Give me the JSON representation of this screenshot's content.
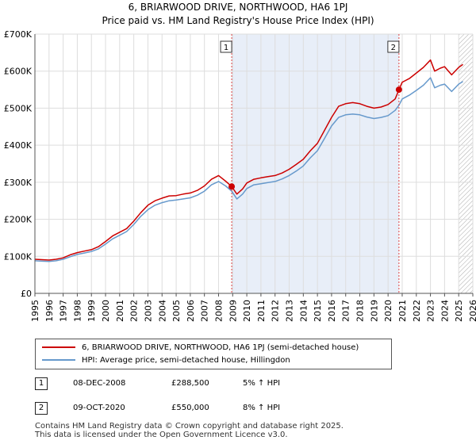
{
  "title_line1": "6, BRIARWOOD DRIVE, NORTHWOOD, HA6 1PJ",
  "title_line2": "Price paid vs. HM Land Registry's House Price Index (HPI)",
  "chart_data": {
    "type": "line",
    "ylim": [
      0,
      700000
    ],
    "xlim": [
      1995,
      2026
    ],
    "y_ticks": [
      {
        "value": 0,
        "label": "£0"
      },
      {
        "value": 100000,
        "label": "£100K"
      },
      {
        "value": 200000,
        "label": "£200K"
      },
      {
        "value": 300000,
        "label": "£300K"
      },
      {
        "value": 400000,
        "label": "£400K"
      },
      {
        "value": 500000,
        "label": "£500K"
      },
      {
        "value": 600000,
        "label": "£600K"
      },
      {
        "value": 700000,
        "label": "£700K"
      }
    ],
    "x_ticks": [
      "1995",
      "1996",
      "1997",
      "1998",
      "1999",
      "2000",
      "2001",
      "2002",
      "2003",
      "2004",
      "2005",
      "2006",
      "2007",
      "2008",
      "2009",
      "2010",
      "2011",
      "2012",
      "2013",
      "2014",
      "2015",
      "2016",
      "2017",
      "2018",
      "2019",
      "2020",
      "2021",
      "2022",
      "2023",
      "2024",
      "2025",
      "2026"
    ],
    "shaded_range": [
      2008.93,
      2020.77
    ],
    "future_hatch_from": 2025.0,
    "series": [
      {
        "name": "6, BRIARWOOD DRIVE, NORTHWOOD, HA6 1PJ (semi-detached house)",
        "color": "#cc0000",
        "points": [
          [
            1995.0,
            92000
          ],
          [
            1995.5,
            91000
          ],
          [
            1996.0,
            90000
          ],
          [
            1996.5,
            92000
          ],
          [
            1997.0,
            96000
          ],
          [
            1997.5,
            104000
          ],
          [
            1998.0,
            110000
          ],
          [
            1998.5,
            114000
          ],
          [
            1999.0,
            118000
          ],
          [
            1999.5,
            126000
          ],
          [
            2000.0,
            140000
          ],
          [
            2000.5,
            155000
          ],
          [
            2001.0,
            165000
          ],
          [
            2001.5,
            175000
          ],
          [
            2002.0,
            195000
          ],
          [
            2002.5,
            218000
          ],
          [
            2003.0,
            238000
          ],
          [
            2003.5,
            250000
          ],
          [
            2004.0,
            257000
          ],
          [
            2004.5,
            263000
          ],
          [
            2005.0,
            264000
          ],
          [
            2005.5,
            268000
          ],
          [
            2006.0,
            271000
          ],
          [
            2006.5,
            278000
          ],
          [
            2007.0,
            290000
          ],
          [
            2007.5,
            308000
          ],
          [
            2008.0,
            318000
          ],
          [
            2008.5,
            303000
          ],
          [
            2008.93,
            288500
          ],
          [
            2009.3,
            268000
          ],
          [
            2009.7,
            282000
          ],
          [
            2010.0,
            298000
          ],
          [
            2010.5,
            308000
          ],
          [
            2011.0,
            312000
          ],
          [
            2011.5,
            315000
          ],
          [
            2012.0,
            318000
          ],
          [
            2012.5,
            325000
          ],
          [
            2013.0,
            335000
          ],
          [
            2013.5,
            348000
          ],
          [
            2014.0,
            362000
          ],
          [
            2014.5,
            385000
          ],
          [
            2015.0,
            405000
          ],
          [
            2015.5,
            440000
          ],
          [
            2016.0,
            475000
          ],
          [
            2016.5,
            505000
          ],
          [
            2017.0,
            512000
          ],
          [
            2017.5,
            515000
          ],
          [
            2018.0,
            512000
          ],
          [
            2018.5,
            505000
          ],
          [
            2019.0,
            500000
          ],
          [
            2019.5,
            503000
          ],
          [
            2020.0,
            510000
          ],
          [
            2020.5,
            525000
          ],
          [
            2020.77,
            550000
          ],
          [
            2021.0,
            570000
          ],
          [
            2021.5,
            580000
          ],
          [
            2022.0,
            595000
          ],
          [
            2022.5,
            610000
          ],
          [
            2023.0,
            630000
          ],
          [
            2023.3,
            600000
          ],
          [
            2023.7,
            608000
          ],
          [
            2024.0,
            612000
          ],
          [
            2024.5,
            590000
          ],
          [
            2025.0,
            610000
          ],
          [
            2025.3,
            618000
          ]
        ]
      },
      {
        "name": "HPI: Average price, semi-detached house, Hillingdon",
        "color": "#6699cc",
        "points": [
          [
            1995.0,
            88000
          ],
          [
            1995.5,
            87000
          ],
          [
            1996.0,
            86000
          ],
          [
            1996.5,
            88000
          ],
          [
            1997.0,
            92000
          ],
          [
            1997.5,
            99000
          ],
          [
            1998.0,
            105000
          ],
          [
            1998.5,
            109000
          ],
          [
            1999.0,
            113000
          ],
          [
            1999.5,
            120000
          ],
          [
            2000.0,
            133000
          ],
          [
            2000.5,
            147000
          ],
          [
            2001.0,
            157000
          ],
          [
            2001.5,
            167000
          ],
          [
            2002.0,
            186000
          ],
          [
            2002.5,
            208000
          ],
          [
            2003.0,
            226000
          ],
          [
            2003.5,
            238000
          ],
          [
            2004.0,
            245000
          ],
          [
            2004.5,
            250000
          ],
          [
            2005.0,
            252000
          ],
          [
            2005.5,
            255000
          ],
          [
            2006.0,
            258000
          ],
          [
            2006.5,
            265000
          ],
          [
            2007.0,
            276000
          ],
          [
            2007.5,
            293000
          ],
          [
            2008.0,
            302000
          ],
          [
            2008.5,
            290000
          ],
          [
            2008.93,
            276000
          ],
          [
            2009.3,
            255000
          ],
          [
            2009.7,
            268000
          ],
          [
            2010.0,
            283000
          ],
          [
            2010.5,
            293000
          ],
          [
            2011.0,
            296000
          ],
          [
            2011.5,
            299000
          ],
          [
            2012.0,
            302000
          ],
          [
            2012.5,
            309000
          ],
          [
            2013.0,
            318000
          ],
          [
            2013.5,
            330000
          ],
          [
            2014.0,
            344000
          ],
          [
            2014.5,
            366000
          ],
          [
            2015.0,
            385000
          ],
          [
            2015.5,
            418000
          ],
          [
            2016.0,
            452000
          ],
          [
            2016.5,
            475000
          ],
          [
            2017.0,
            482000
          ],
          [
            2017.5,
            484000
          ],
          [
            2018.0,
            482000
          ],
          [
            2018.5,
            476000
          ],
          [
            2019.0,
            472000
          ],
          [
            2019.5,
            475000
          ],
          [
            2020.0,
            480000
          ],
          [
            2020.5,
            494000
          ],
          [
            2020.77,
            508000
          ],
          [
            2021.0,
            525000
          ],
          [
            2021.5,
            535000
          ],
          [
            2022.0,
            548000
          ],
          [
            2022.5,
            562000
          ],
          [
            2023.0,
            582000
          ],
          [
            2023.3,
            555000
          ],
          [
            2023.7,
            562000
          ],
          [
            2024.0,
            565000
          ],
          [
            2024.5,
            545000
          ],
          [
            2025.0,
            565000
          ],
          [
            2025.3,
            572000
          ]
        ]
      }
    ],
    "annotations": [
      {
        "label": "1",
        "x": 2008.93,
        "y": 288500
      },
      {
        "label": "2",
        "x": 2020.77,
        "y": 550000
      }
    ]
  },
  "legend": {
    "red_label": "6, BRIARWOOD DRIVE, NORTHWOOD, HA6 1PJ (semi-detached house)",
    "blue_label": "HPI: Average price, semi-detached house, Hillingdon",
    "red_color": "#cc0000",
    "blue_color": "#6699cc"
  },
  "transactions": [
    {
      "num": "1",
      "date": "08-DEC-2008",
      "price": "£288,500",
      "hpi": "5% ↑ HPI"
    },
    {
      "num": "2",
      "date": "09-OCT-2020",
      "price": "£550,000",
      "hpi": "8% ↑ HPI"
    }
  ],
  "footer_line1": "Contains HM Land Registry data © Crown copyright and database right 2025.",
  "footer_line2": "This data is licensed under the Open Government Licence v3.0."
}
